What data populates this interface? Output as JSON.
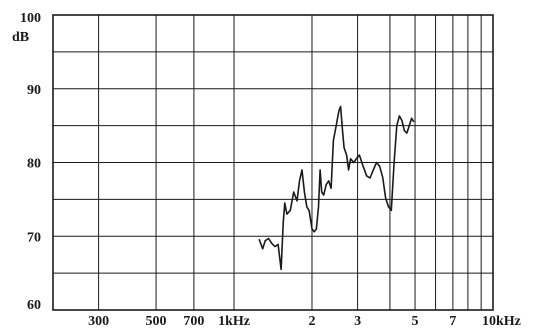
{
  "chart_data": {
    "type": "line",
    "title": "",
    "xlabel": "",
    "ylabel": "dB",
    "x_scale": "log",
    "xlim": [
      200,
      10000
    ],
    "ylim": [
      60,
      100
    ],
    "grid": true,
    "x_tick_values": [
      300,
      500,
      700,
      1000,
      2000,
      3000,
      5000,
      7000,
      10000
    ],
    "x_tick_labels": [
      "300",
      "500",
      "700",
      "1kHz",
      "2",
      "3",
      "5",
      "7",
      "10kHz"
    ],
    "x_minor_gridlines": [
      4000,
      6000,
      8000,
      9000
    ],
    "y_tick_values": [
      60,
      70,
      80,
      90,
      100
    ],
    "y_tick_labels": [
      "60",
      "70",
      "80",
      "90",
      "100"
    ],
    "y_minor_gridlines": [
      65,
      75,
      85,
      95
    ],
    "series": [
      {
        "name": "",
        "color": "#1a1a1a",
        "points": [
          [
            1250,
            69.6
          ],
          [
            1290,
            68.3
          ],
          [
            1320,
            69.4
          ],
          [
            1360,
            69.7
          ],
          [
            1400,
            69.0
          ],
          [
            1440,
            68.6
          ],
          [
            1480,
            68.9
          ],
          [
            1520,
            65.5
          ],
          [
            1550,
            72.0
          ],
          [
            1570,
            74.5
          ],
          [
            1600,
            73.0
          ],
          [
            1650,
            73.5
          ],
          [
            1700,
            76.0
          ],
          [
            1750,
            74.8
          ],
          [
            1790,
            77.5
          ],
          [
            1830,
            79.0
          ],
          [
            1870,
            76.0
          ],
          [
            1910,
            74.0
          ],
          [
            1950,
            73.5
          ],
          [
            2000,
            71.0
          ],
          [
            2040,
            70.6
          ],
          [
            2080,
            71.0
          ],
          [
            2120,
            74.0
          ],
          [
            2150,
            79.0
          ],
          [
            2180,
            76.0
          ],
          [
            2220,
            75.6
          ],
          [
            2270,
            77.0
          ],
          [
            2320,
            77.5
          ],
          [
            2370,
            76.5
          ],
          [
            2420,
            83.0
          ],
          [
            2480,
            85.0
          ],
          [
            2540,
            87.0
          ],
          [
            2580,
            87.6
          ],
          [
            2620,
            84.5
          ],
          [
            2660,
            82.0
          ],
          [
            2720,
            81.0
          ],
          [
            2770,
            79.0
          ],
          [
            2820,
            80.5
          ],
          [
            2900,
            80.0
          ],
          [
            2980,
            80.6
          ],
          [
            3050,
            81.0
          ],
          [
            3150,
            79.5
          ],
          [
            3250,
            78.2
          ],
          [
            3350,
            77.9
          ],
          [
            3450,
            79.0
          ],
          [
            3550,
            80.0
          ],
          [
            3650,
            79.5
          ],
          [
            3750,
            78.0
          ],
          [
            3850,
            75.2
          ],
          [
            3950,
            74.0
          ],
          [
            4050,
            73.5
          ],
          [
            4150,
            80.0
          ],
          [
            4250,
            85.0
          ],
          [
            4350,
            86.3
          ],
          [
            4450,
            85.7
          ],
          [
            4550,
            84.3
          ],
          [
            4650,
            84.0
          ],
          [
            4750,
            85.0
          ],
          [
            4850,
            86.0
          ],
          [
            4950,
            85.5
          ]
        ]
      }
    ]
  }
}
